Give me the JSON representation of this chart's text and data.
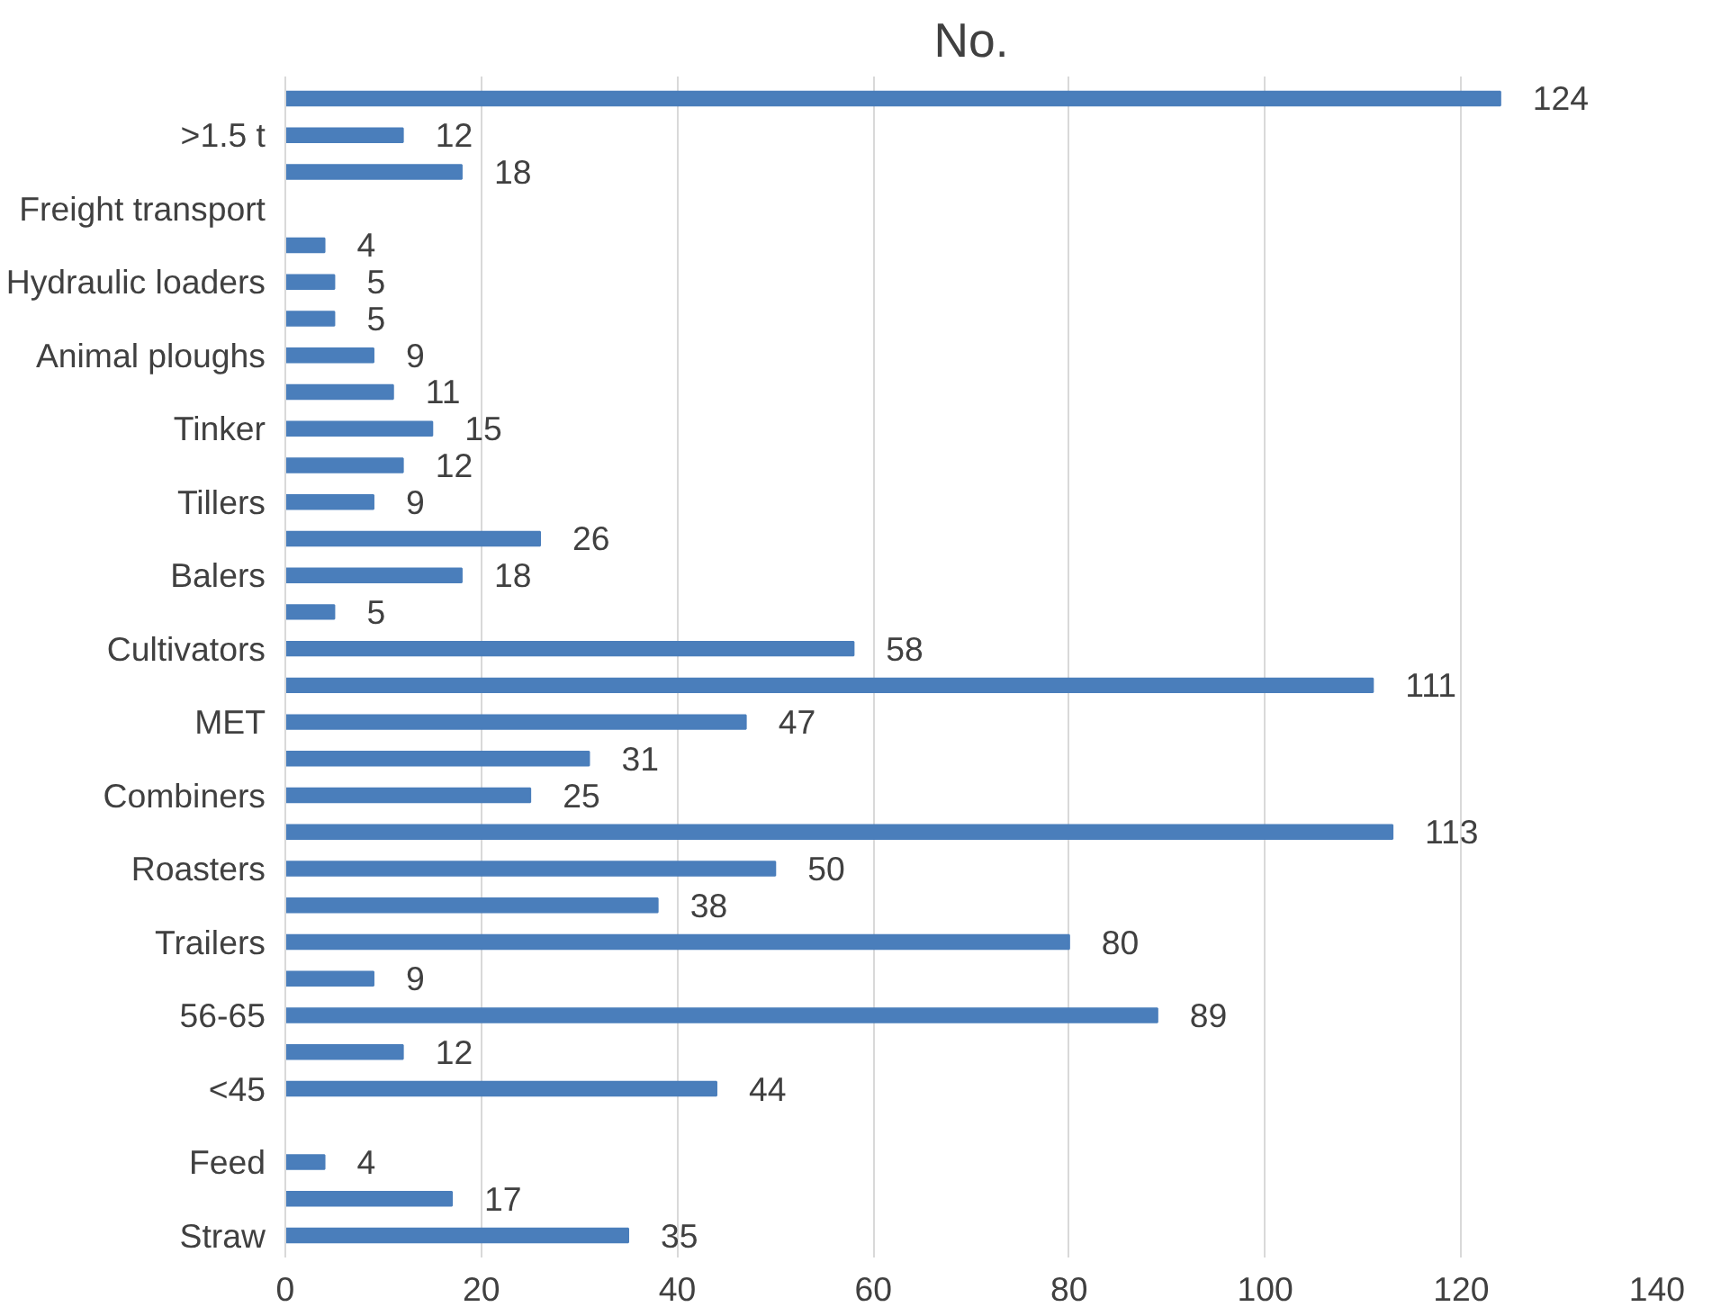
{
  "chart_data": {
    "type": "bar",
    "orientation": "horizontal",
    "title": "No.",
    "categories": [
      null,
      ">1.5 t",
      null,
      "Freight transport",
      null,
      "Hydraulic loaders",
      null,
      "Animal ploughs",
      null,
      "Tinker",
      null,
      "Tillers",
      null,
      "Balers",
      null,
      "Cultivators",
      null,
      "MET",
      null,
      "Combiners",
      null,
      "Roasters",
      null,
      "Trailers",
      null,
      "56-65",
      null,
      "<45",
      null,
      "Feed",
      null,
      "Straw"
    ],
    "values": [
      124,
      12,
      18,
      null,
      4,
      5,
      5,
      9,
      11,
      15,
      12,
      9,
      26,
      18,
      5,
      58,
      111,
      47,
      31,
      25,
      113,
      50,
      38,
      80,
      9,
      89,
      12,
      44,
      null,
      4,
      17,
      35
    ],
    "color": "#4a7ebb",
    "data_labels": true,
    "xlim": [
      0,
      140
    ],
    "xticks": [
      0,
      20,
      40,
      60,
      80,
      100,
      120,
      140
    ],
    "grid": "x"
  }
}
